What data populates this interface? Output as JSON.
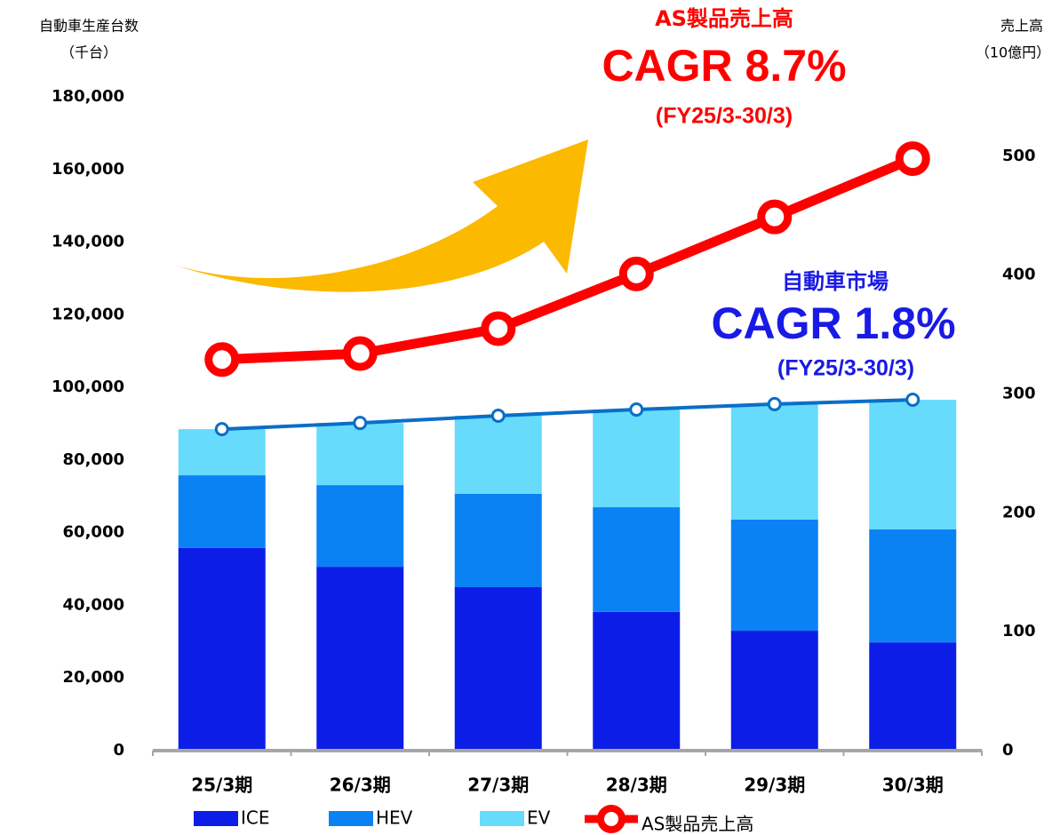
{
  "chart_data": {
    "type": "bar",
    "y_label": [
      "自動車生産台数",
      "（千台）"
    ],
    "y2_label": [
      "売上高",
      "（10億円）"
    ],
    "annotations": [
      "AS製品売上高",
      "CAGR 8.7%",
      "(FY25/3-30/3)",
      "自動車市場",
      "CAGR 1.8%",
      "(FY25/3-30/3)"
    ],
    "categories": [
      "25/3期",
      "26/3期",
      "27/3期",
      "28/3期",
      "29/3期",
      "30/3期"
    ],
    "stacked": true,
    "series": [
      {
        "name": "ICE",
        "color": "#0c1de8",
        "values": [
          55800,
          50600,
          45000,
          38200,
          33000,
          29800
        ]
      },
      {
        "name": "HEV",
        "color": "#0a82f4",
        "values": [
          20000,
          22500,
          25700,
          28800,
          30600,
          31100
        ]
      },
      {
        "name": "EV",
        "color": "#66dbfc",
        "values": [
          12700,
          17100,
          21500,
          26900,
          31800,
          35700
        ]
      },
      {
        "name": "AS製品売上高",
        "color": "#ff0000",
        "type": "line",
        "axis": "y2",
        "values": [
          329,
          334,
          355,
          401,
          449,
          498
        ]
      }
    ],
    "total_line_color": "#0a6ec8",
    "ylim": [
      0,
      180000
    ],
    "yticks": [
      {
        "value": 0,
        "label": "0"
      },
      {
        "value": 20000,
        "label": "20,000"
      },
      {
        "value": 40000,
        "label": "40,000"
      },
      {
        "value": 60000,
        "label": "60,000"
      },
      {
        "value": 80000,
        "label": "80,000"
      },
      {
        "value": 100000,
        "label": "100,000"
      },
      {
        "value": 120000,
        "label": "120,000"
      },
      {
        "value": 140000,
        "label": "140,000"
      },
      {
        "value": 160000,
        "label": "160,000"
      },
      {
        "value": 180000,
        "label": "180,000"
      }
    ],
    "y2lim": [
      0,
      550
    ],
    "y2ticks": [
      0,
      100,
      200,
      300,
      400,
      500
    ]
  }
}
